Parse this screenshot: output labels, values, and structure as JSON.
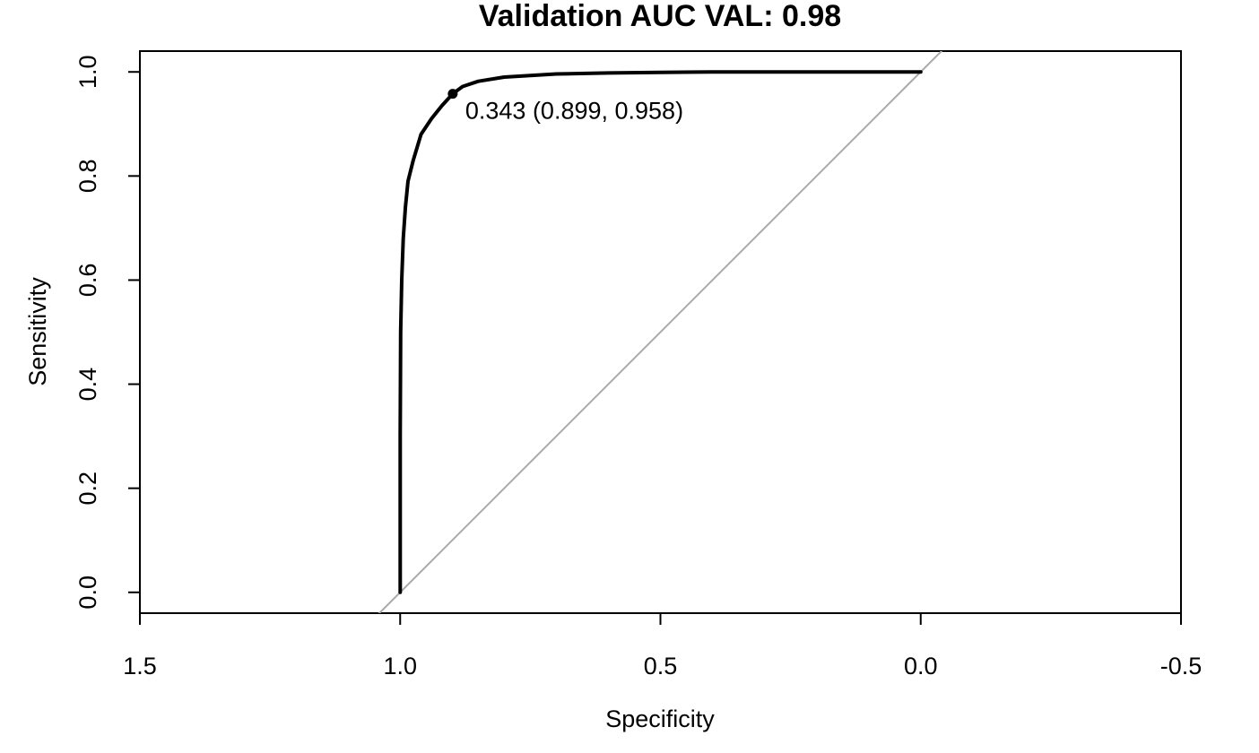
{
  "chart_data": {
    "type": "line",
    "title": "Validation AUC VAL: 0.98",
    "xlabel": "Specificity",
    "ylabel": "Sensitivity",
    "x_reversed": true,
    "xlim": [
      1.5,
      -0.5
    ],
    "ylim": [
      -0.04,
      1.04
    ],
    "x_ticks": [
      1.5,
      1.0,
      0.5,
      0.0,
      -0.5
    ],
    "x_tick_labels": [
      "1.5",
      "1.0",
      "0.5",
      "0.0",
      "-0.5"
    ],
    "y_ticks": [
      0.0,
      0.2,
      0.4,
      0.6,
      0.8,
      1.0
    ],
    "y_tick_labels": [
      "0.0",
      "0.2",
      "0.4",
      "0.6",
      "0.8",
      "1.0"
    ],
    "grid": false,
    "legend": "none",
    "series": [
      {
        "color": "#000000",
        "x": [
          1.0,
          1.0,
          0.999,
          0.997,
          0.994,
          0.99,
          0.985,
          0.975,
          0.96,
          0.94,
          0.92,
          0.899,
          0.88,
          0.85,
          0.8,
          0.7,
          0.6,
          0.5,
          0.4,
          0.3,
          0.2,
          0.1,
          0.0
        ],
        "y": [
          0.0,
          0.3,
          0.5,
          0.6,
          0.68,
          0.74,
          0.79,
          0.83,
          0.88,
          0.91,
          0.935,
          0.958,
          0.972,
          0.982,
          0.99,
          0.996,
          0.998,
          0.999,
          1.0,
          1.0,
          1.0,
          1.0,
          1.0
        ]
      }
    ],
    "reference_line": {
      "slope": -1,
      "intercept": 1,
      "color": "#aaaaaa"
    },
    "points": [
      {
        "x": 0.899,
        "y": 0.958,
        "label": "0.343 (0.899, 0.958)"
      }
    ]
  }
}
